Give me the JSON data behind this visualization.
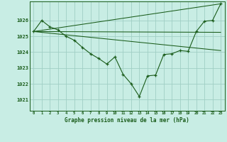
{
  "title": "Graphe pression niveau de la mer (hPa)",
  "xlabel_ticks": [
    0,
    1,
    2,
    3,
    4,
    5,
    6,
    7,
    8,
    9,
    10,
    11,
    12,
    13,
    14,
    15,
    16,
    17,
    18,
    19,
    20,
    21,
    22,
    23
  ],
  "yticks": [
    1021,
    1022,
    1023,
    1024,
    1025,
    1026
  ],
  "ylim": [
    1020.3,
    1027.2
  ],
  "xlim": [
    -0.5,
    23.5
  ],
  "bg_color": "#c8ede4",
  "line_color": "#1a5c1a",
  "grid_color": "#a0cfc4",
  "series_main": {
    "x": [
      0,
      1,
      2,
      3,
      4,
      5,
      6,
      7,
      8,
      9,
      10,
      11,
      12,
      13,
      14,
      15,
      16,
      17,
      18,
      19,
      20,
      21,
      22,
      23
    ],
    "y": [
      1025.3,
      1026.0,
      1025.6,
      1025.4,
      1025.0,
      1024.75,
      1024.3,
      1023.9,
      1023.6,
      1023.25,
      1023.7,
      1022.6,
      1022.0,
      1021.2,
      1022.5,
      1022.55,
      1023.85,
      1023.9,
      1024.1,
      1024.05,
      1025.3,
      1025.95,
      1026.0,
      1027.05
    ]
  },
  "trend1": {
    "x": [
      0,
      23
    ],
    "y": [
      1025.3,
      1027.05
    ]
  },
  "trend2": {
    "x": [
      0,
      23
    ],
    "y": [
      1025.3,
      1025.25
    ]
  },
  "trend3": {
    "x": [
      0,
      23
    ],
    "y": [
      1025.3,
      1024.1
    ]
  }
}
